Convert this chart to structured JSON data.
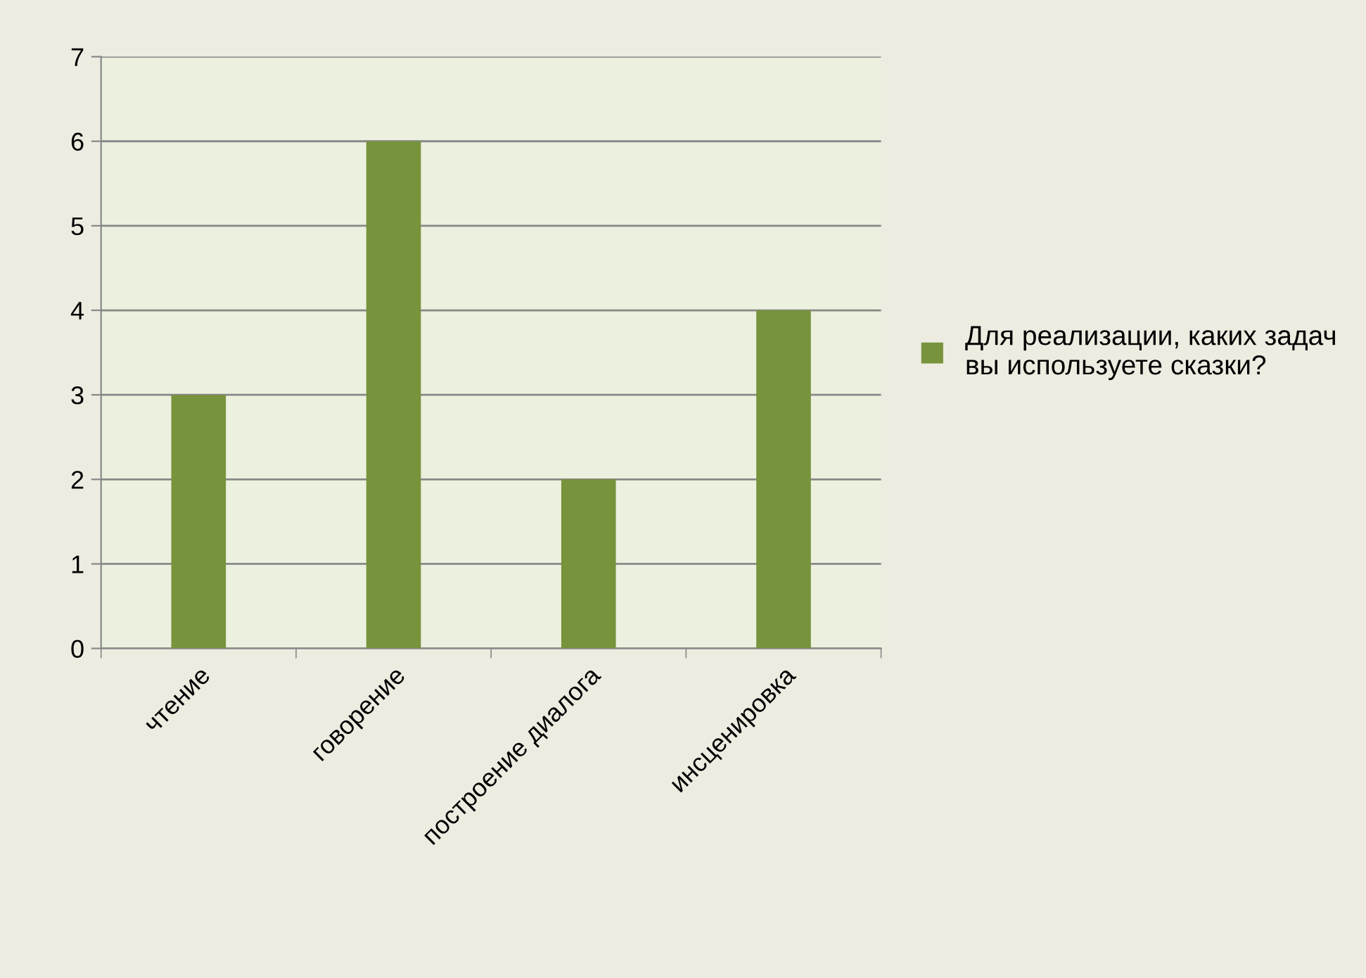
{
  "chart_data": {
    "type": "bar",
    "categories": [
      "чтение",
      "говорение",
      "построение диалога",
      "инсценировка"
    ],
    "series": [
      {
        "name": "Для реализации, каких задач\nвы используете сказки?",
        "color": "#77933c",
        "values": [
          3,
          6,
          2,
          4
        ]
      }
    ],
    "ylim": [
      0,
      7
    ],
    "yticks": [
      0,
      1,
      2,
      3,
      4,
      5,
      6,
      7
    ],
    "grid": "y",
    "legend": "right"
  }
}
